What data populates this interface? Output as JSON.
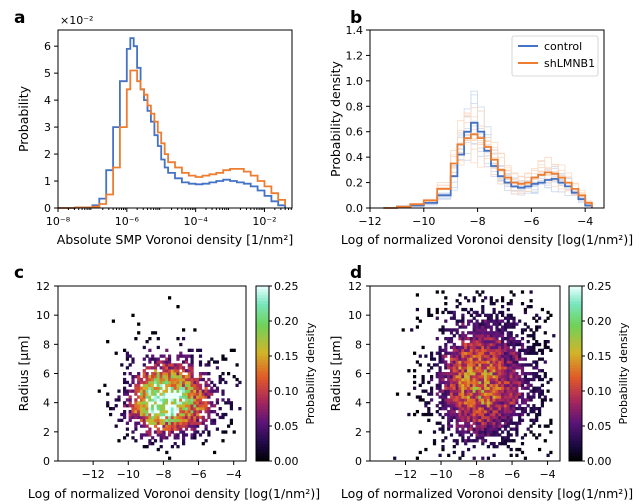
{
  "chart_data": [
    {
      "panel": "a",
      "type": "line",
      "xlabel": "Absolute SMP Voronoi density [1/nm²]",
      "ylabel": "Probability",
      "y_multiplier": "×10⁻²",
      "x_scale": "log",
      "xlim_log10": [
        -8,
        -1.2
      ],
      "ylim": [
        0,
        6.6
      ],
      "x_ticks": [
        "10⁻⁸",
        "10⁻⁶",
        "10⁻⁴",
        "10⁻²"
      ],
      "y_ticks": [
        "0",
        "1",
        "2",
        "3",
        "4",
        "5",
        "6"
      ],
      "x_log10": [
        -8.0,
        -7.5,
        -7.0,
        -6.8,
        -6.6,
        -6.4,
        -6.2,
        -6.0,
        -5.9,
        -5.8,
        -5.7,
        -5.6,
        -5.5,
        -5.4,
        -5.3,
        -5.2,
        -5.1,
        -5.0,
        -4.9,
        -4.8,
        -4.6,
        -4.4,
        -4.2,
        -4.0,
        -3.8,
        -3.6,
        -3.4,
        -3.2,
        -3.0,
        -2.8,
        -2.6,
        -2.4,
        -2.2,
        -2.0,
        -1.8,
        -1.6,
        -1.4
      ],
      "series": [
        {
          "name": "control",
          "color": "#4472c4",
          "values": [
            0.0,
            0.02,
            0.1,
            0.35,
            1.4,
            3.0,
            4.7,
            5.9,
            6.3,
            6.0,
            5.2,
            4.4,
            4.0,
            3.6,
            3.2,
            2.7,
            2.3,
            1.8,
            1.5,
            1.3,
            1.1,
            0.95,
            0.9,
            0.88,
            0.9,
            0.95,
            1.0,
            1.05,
            1.0,
            0.95,
            0.9,
            0.8,
            0.65,
            0.45,
            0.25,
            0.1,
            0.02
          ]
        },
        {
          "name": "shLMNB1",
          "color": "#ed7d31",
          "values": [
            0.0,
            0.02,
            0.05,
            0.15,
            0.5,
            1.5,
            3.0,
            4.4,
            5.1,
            5.1,
            4.7,
            4.4,
            4.2,
            3.8,
            3.5,
            3.2,
            2.8,
            2.4,
            2.0,
            1.7,
            1.5,
            1.3,
            1.2,
            1.15,
            1.2,
            1.25,
            1.3,
            1.4,
            1.45,
            1.45,
            1.35,
            1.2,
            1.0,
            0.8,
            0.55,
            0.3,
            0.1
          ]
        }
      ]
    },
    {
      "panel": "b",
      "type": "line",
      "xlabel": "Log of normalized Voronoi density [log(1/nm²)]",
      "ylabel": "Probability density",
      "xlim": [
        -12,
        -3.3
      ],
      "ylim": [
        0,
        1.4
      ],
      "x_ticks": [
        -12,
        -10,
        -8,
        -6,
        -4
      ],
      "y_ticks": [
        "0.0",
        "0.2",
        "0.4",
        "0.6",
        "0.8",
        "1.0",
        "1.2",
        "1.4"
      ],
      "legend": [
        "control",
        "shLMNB1"
      ],
      "legend_position": "top-right",
      "x": [
        -11.5,
        -11.0,
        -10.5,
        -10.0,
        -9.5,
        -9.0,
        -8.75,
        -8.5,
        -8.25,
        -8.0,
        -7.75,
        -7.5,
        -7.25,
        -7.0,
        -6.75,
        -6.5,
        -6.25,
        -6.0,
        -5.75,
        -5.5,
        -5.25,
        -5.0,
        -4.75,
        -4.5,
        -4.25,
        -4.0,
        -3.75
      ],
      "series": [
        {
          "name": "control",
          "color": "#4472c4",
          "values": [
            0.0,
            0.01,
            0.02,
            0.04,
            0.1,
            0.25,
            0.42,
            0.6,
            0.67,
            0.6,
            0.45,
            0.33,
            0.25,
            0.2,
            0.17,
            0.16,
            0.17,
            0.19,
            0.2,
            0.22,
            0.23,
            0.2,
            0.17,
            0.12,
            0.07,
            0.02,
            0.0
          ]
        },
        {
          "name": "shLMNB1",
          "color": "#ed7d31",
          "values": [
            0.0,
            0.01,
            0.03,
            0.06,
            0.15,
            0.35,
            0.5,
            0.55,
            0.58,
            0.55,
            0.48,
            0.38,
            0.3,
            0.24,
            0.2,
            0.19,
            0.2,
            0.24,
            0.26,
            0.28,
            0.27,
            0.24,
            0.2,
            0.15,
            0.1,
            0.04,
            0.01
          ]
        }
      ]
    },
    {
      "panel": "c",
      "type": "heatmap",
      "xlabel": "Log of normalized Voronoi density [log(1/nm²)]",
      "ylabel": "Radius [μm]",
      "xlim": [
        -14,
        -3.3
      ],
      "ylim": [
        0,
        12
      ],
      "x_ticks": [
        -12,
        -10,
        -8,
        -6,
        -4
      ],
      "y_ticks": [
        0,
        2,
        4,
        6,
        8,
        10,
        12
      ],
      "colorbar_label": "Probability density",
      "colorbar_ticks": [
        "0.00",
        "0.05",
        "0.10",
        "0.15",
        "0.20",
        "0.25"
      ],
      "colorbar_range": [
        0,
        0.25
      ],
      "peak": {
        "x": -8.1,
        "y": 3.9,
        "value": 0.24
      },
      "spread": {
        "x_left": 1.3,
        "x_right": 1.8,
        "y_down": 1.4,
        "y_up": 1.9
      }
    },
    {
      "panel": "d",
      "type": "heatmap",
      "xlabel": "Log of normalized Voronoi density [log(1/nm²)]",
      "ylabel": "Radius [μm]",
      "xlim": [
        -14,
        -3.3
      ],
      "ylim": [
        0,
        12
      ],
      "x_ticks": [
        -12,
        -10,
        -8,
        -6,
        -4
      ],
      "y_ticks": [
        0,
        2,
        4,
        6,
        8,
        10,
        12
      ],
      "colorbar_label": "Probability density",
      "colorbar_ticks": [
        "0.00",
        "0.05",
        "0.10",
        "0.15",
        "0.20",
        "0.25"
      ],
      "colorbar_range": [
        0,
        0.25
      ],
      "peak": {
        "x": -8.1,
        "y": 5.2,
        "value": 0.13
      },
      "spread": {
        "x_left": 1.5,
        "x_right": 2.0,
        "y_down": 2.6,
        "y_up": 3.0
      }
    }
  ]
}
